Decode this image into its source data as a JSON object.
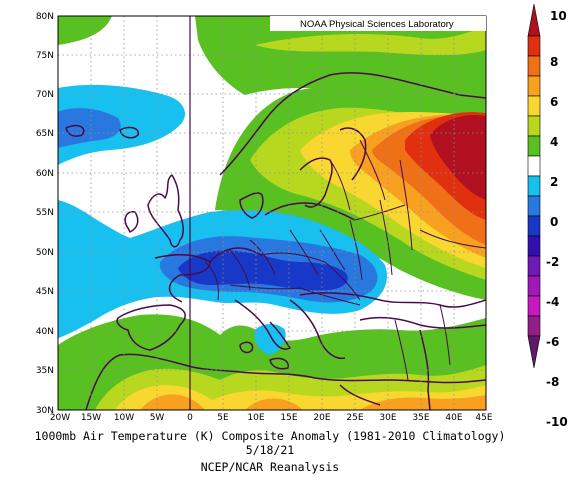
{
  "map": {
    "credit": "NOAA Physical Sciences Laboratory",
    "lat_labels": [
      "80N",
      "75N",
      "70N",
      "65N",
      "60N",
      "55N",
      "50N",
      "45N",
      "40N",
      "35N",
      "30N"
    ],
    "lon_labels": [
      "20W",
      "15W",
      "10W",
      "5W",
      "0",
      "5E",
      "10E",
      "15E",
      "20E",
      "25E",
      "30E",
      "35E",
      "40E",
      "45E"
    ],
    "lon_range": [
      -20,
      45
    ],
    "lat_range": [
      30,
      80
    ],
    "gridlines": "dotted",
    "projection": "equirectangular"
  },
  "colorbar": {
    "labels": [
      "10",
      "8",
      "6",
      "4",
      "2",
      "0",
      "-2",
      "-4",
      "-6",
      "-8",
      "-10"
    ],
    "colors": [
      "#b01020",
      "#e03010",
      "#f07018",
      "#f8a020",
      "#f8d830",
      "#b8d820",
      "#58c020",
      "#ffffff",
      "#18c0f0",
      "#2878e0",
      "#1838c8",
      "#3010b0",
      "#7018b8",
      "#a018b8",
      "#c818c0",
      "#902088",
      "#601868"
    ]
  },
  "caption": {
    "line1": "1000mb Air Temperature (K) Composite Anomaly (1981-2010 Climatology)",
    "line2": "5/18/21",
    "line3": "NCEP/NCAR Reanalysis"
  }
}
